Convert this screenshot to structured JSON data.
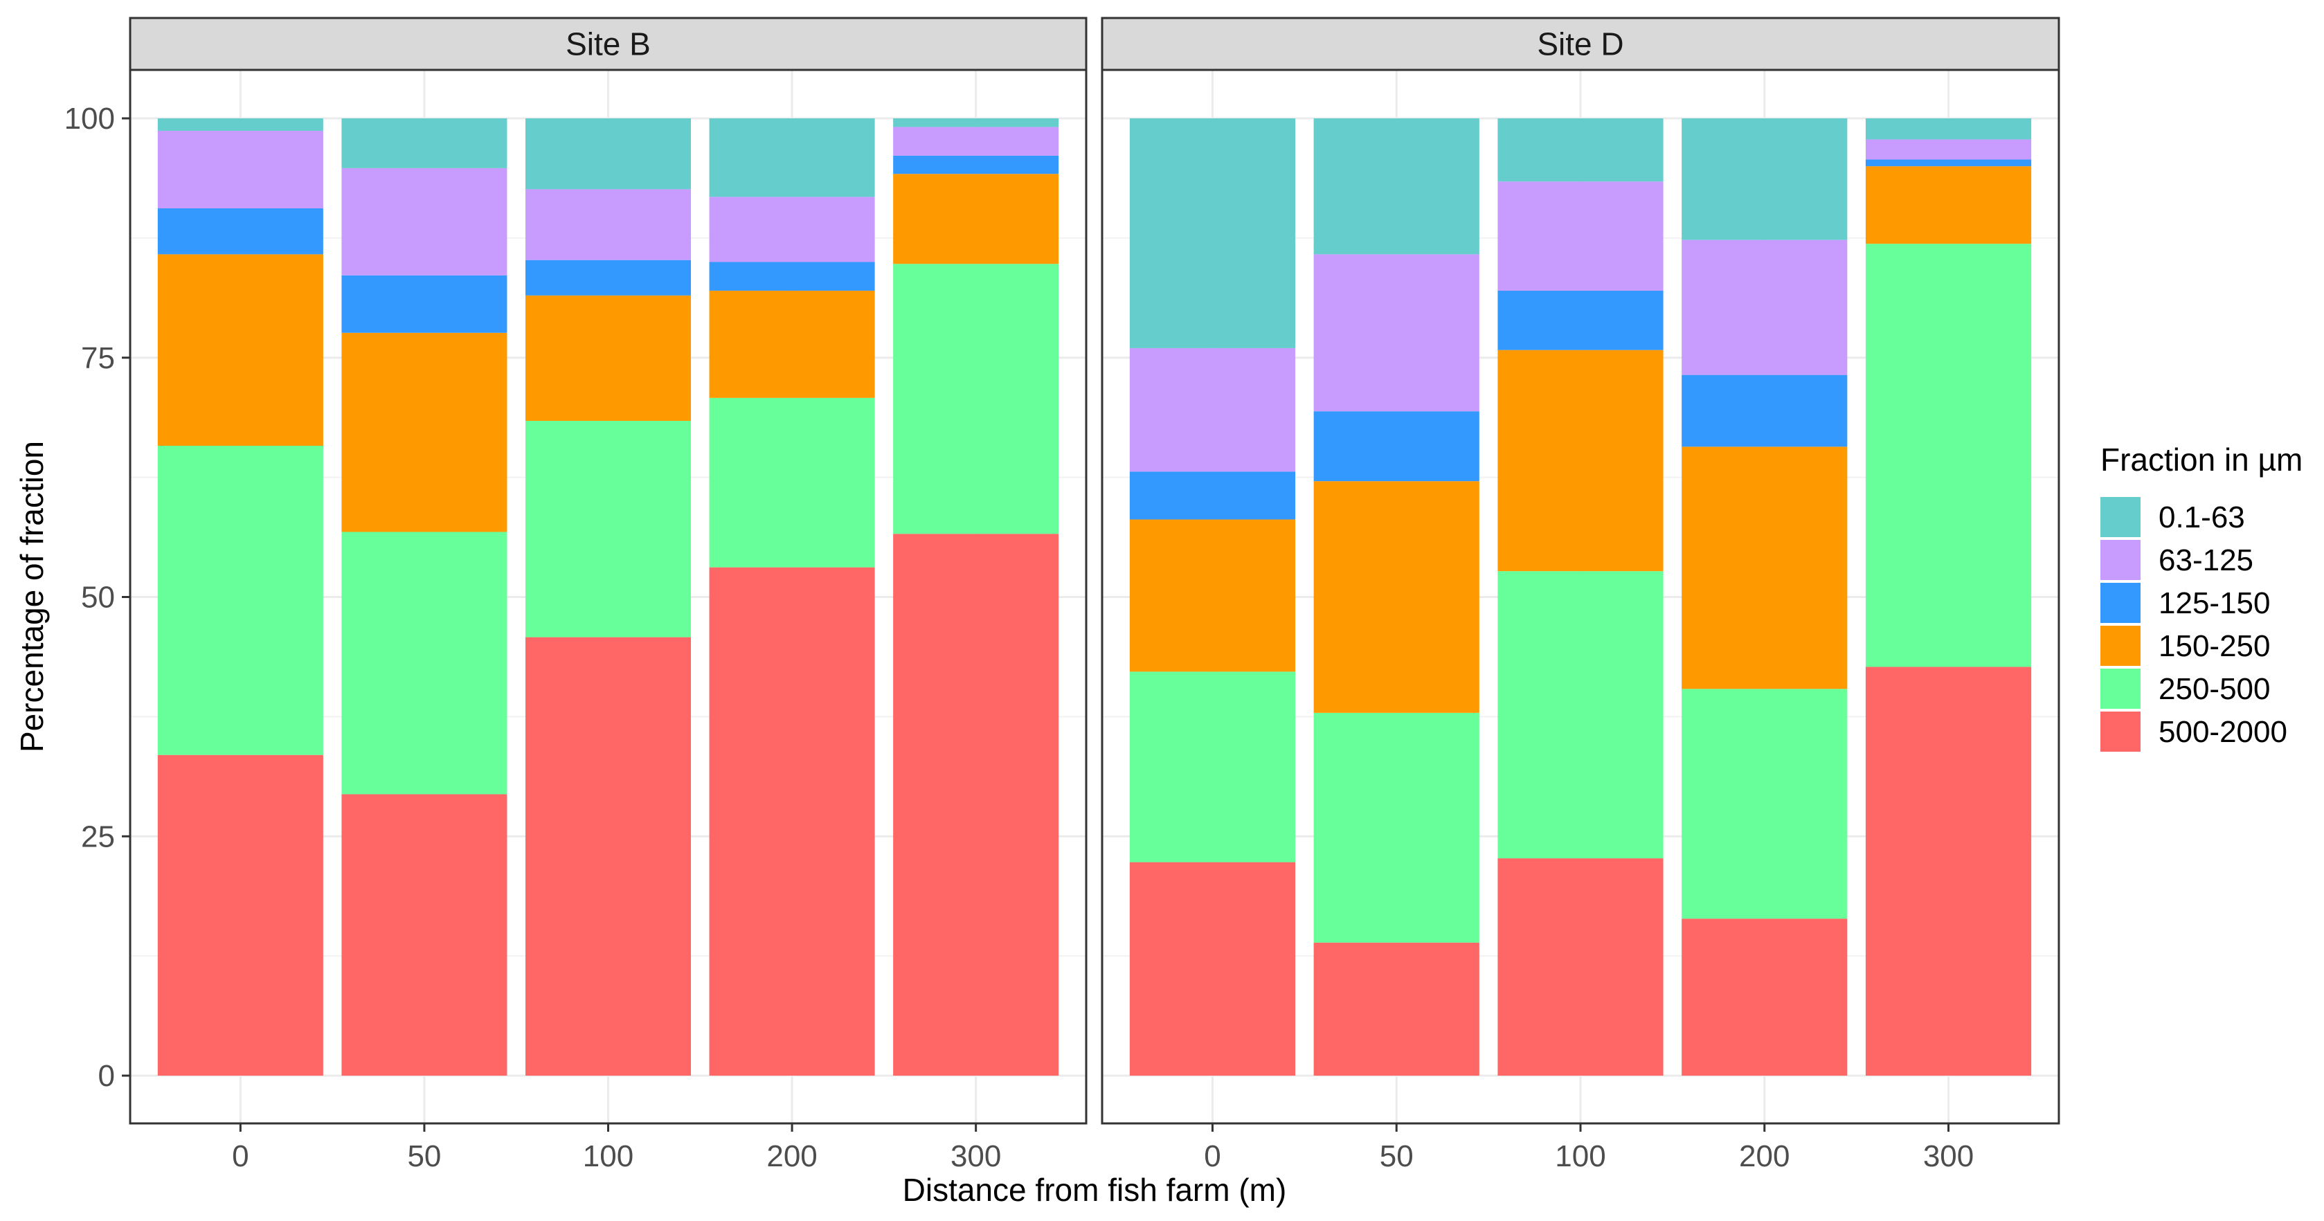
{
  "chart_data": {
    "type": "bar",
    "stacked": true,
    "xlabel": "Distance from fish farm (m)",
    "ylabel": "Percentage of fraction",
    "ylim": [
      0,
      100
    ],
    "yticks": [
      0,
      25,
      50,
      75,
      100
    ],
    "categories": [
      "0",
      "50",
      "100",
      "200",
      "300"
    ],
    "legend": {
      "title": "Fraction in µm",
      "placement": "right",
      "items": [
        {
          "label": "0.1-63",
          "color": "#66CDCD"
        },
        {
          "label": "63-125",
          "color": "#C89BFF"
        },
        {
          "label": "125-150",
          "color": "#3399FF"
        },
        {
          "label": "150-250",
          "color": "#FF9900"
        },
        {
          "label": "250-500",
          "color": "#66FF99"
        },
        {
          "label": "500-2000",
          "color": "#FF6666"
        }
      ]
    },
    "panels": [
      {
        "title": "Site B",
        "series": [
          {
            "name": "500-2000",
            "values": [
              33.5,
              29.4,
              45.8,
              53.1,
              56.6
            ]
          },
          {
            "name": "250-500",
            "values": [
              32.3,
              27.4,
              22.6,
              17.7,
              28.2
            ]
          },
          {
            "name": "150-250",
            "values": [
              20.0,
              20.8,
              13.1,
              11.2,
              9.4
            ]
          },
          {
            "name": "125-150",
            "values": [
              4.8,
              6.0,
              3.7,
              3.0,
              1.9
            ]
          },
          {
            "name": "63-125",
            "values": [
              8.1,
              11.2,
              7.4,
              6.8,
              3.0
            ]
          },
          {
            "name": "0.1-63",
            "values": [
              1.3,
              5.2,
              7.4,
              8.2,
              0.9
            ]
          }
        ]
      },
      {
        "title": "Site D",
        "series": [
          {
            "name": "500-2000",
            "values": [
              22.3,
              13.9,
              22.7,
              16.4,
              42.7
            ]
          },
          {
            "name": "250-500",
            "values": [
              19.9,
              24.0,
              30.0,
              24.0,
              44.2
            ]
          },
          {
            "name": "150-250",
            "values": [
              15.9,
              24.2,
              23.1,
              25.3,
              8.1
            ]
          },
          {
            "name": "125-150",
            "values": [
              5.0,
              7.3,
              6.2,
              7.5,
              0.7
            ]
          },
          {
            "name": "63-125",
            "values": [
              12.9,
              16.4,
              11.4,
              14.1,
              2.1
            ]
          },
          {
            "name": "0.1-63",
            "values": [
              24.0,
              14.2,
              6.6,
              12.7,
              2.2
            ]
          }
        ]
      }
    ]
  }
}
